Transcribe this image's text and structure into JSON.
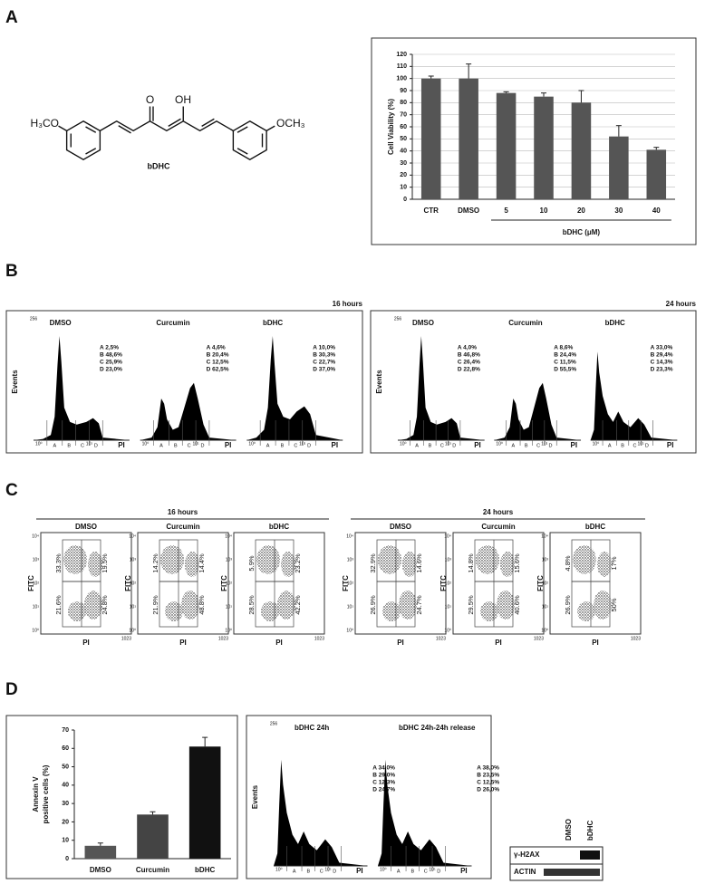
{
  "panel_labels": [
    "A",
    "B",
    "C",
    "D"
  ],
  "molecule": {
    "name": "bDHC",
    "left_group": "H₃CO",
    "right_group": "OCH₃",
    "keto": "O",
    "enol": "OH"
  },
  "chart_data": [
    {
      "type": "bar",
      "ylabel": [
        "Cell Viability (%)"
      ],
      "categories": [
        "CTR",
        "DMSO",
        "5",
        "10",
        "20",
        "30",
        "40"
      ],
      "values": [
        100,
        100,
        88,
        85,
        80,
        52,
        41
      ],
      "errors": [
        2,
        12,
        1,
        3,
        10,
        9,
        2
      ],
      "colors": [
        "#555555",
        "#555555",
        "#555555",
        "#555555",
        "#555555",
        "#555555",
        "#555555"
      ],
      "group_label": "bDHC (μM)",
      "ylim": [
        0,
        120
      ],
      "yticks": [
        0,
        10,
        20,
        30,
        40,
        50,
        60,
        70,
        80,
        90,
        100,
        110,
        120
      ],
      "grid": true
    },
    {
      "type": "bar",
      "ylabel": [
        "Annexin V",
        "positive cells (%)"
      ],
      "categories": [
        "DMSO",
        "Curcumin",
        "bDHC"
      ],
      "values": [
        7,
        24,
        61
      ],
      "errors": [
        1.5,
        1.5,
        5
      ],
      "colors": [
        "#555555",
        "#444444",
        "#111111"
      ],
      "ylim": [
        0,
        70
      ],
      "yticks": [
        0,
        10,
        20,
        30,
        40,
        50,
        60,
        70
      ],
      "grid": false
    }
  ],
  "cell_cycle": {
    "y_label": "Events",
    "y_max_label": "256",
    "x_label": "PI",
    "x_ticks": [
      "10⁰",
      "10¹"
    ],
    "gates": [
      "A",
      "B",
      "C",
      "D"
    ],
    "panels": [
      {
        "time": "16 hours",
        "samples": [
          {
            "name": "DMSO",
            "stats": [
              "A 2,5%",
              "B 48,6%",
              "C 25,9%",
              "D 23,0%"
            ]
          },
          {
            "name": "Curcumin",
            "stats": [
              "A 4,6%",
              "B 20,4%",
              "C 12,5%",
              "D 62,5%"
            ]
          },
          {
            "name": "bDHC",
            "stats": [
              "A 10,0%",
              "B 30,3%",
              "C 22,7%",
              "D 37,0%"
            ]
          }
        ]
      },
      {
        "time": "24 hours",
        "samples": [
          {
            "name": "DMSO",
            "stats": [
              "A 4,0%",
              "B 46,8%",
              "C 26,4%",
              "D 22,8%"
            ]
          },
          {
            "name": "Curcumin",
            "stats": [
              "A 8,6%",
              "B 24,4%",
              "C 11,5%",
              "D 55,5%"
            ]
          },
          {
            "name": "bDHC",
            "stats": [
              "A 33,0%",
              "B 29,4%",
              "C 14,3%",
              "D 23,3%"
            ]
          }
        ]
      }
    ]
  },
  "apoptosis": {
    "y_label": "FITC",
    "x_label": "PI",
    "x_end_label": "1023",
    "y_ticks": [
      "10⁰",
      "10¹",
      "10²",
      "10³",
      "10⁴"
    ],
    "groups": [
      {
        "time": "16 hours",
        "samples": [
          {
            "name": "DMSO",
            "quadrants": [
              "33.3%",
              "19.5%",
              "21.6%",
              "24.8%"
            ]
          },
          {
            "name": "Curcumin",
            "quadrants": [
              "14.2%",
              "14.4%",
              "21.9%",
              "48.8%"
            ]
          },
          {
            "name": "bDHC",
            "quadrants": [
              "5.9%",
              "23.2%",
              "28.5%",
              "42.2%"
            ]
          }
        ]
      },
      {
        "time": "24 hours",
        "samples": [
          {
            "name": "DMSO",
            "quadrants": [
              "32.9%",
              "14.6%",
              "26.9%",
              "24.7%"
            ]
          },
          {
            "name": "Curcumin",
            "quadrants": [
              "14.8%",
              "15.6%",
              "29.5%",
              "40.6%"
            ]
          },
          {
            "name": "bDHC",
            "quadrants": [
              "4.8%",
              "17%",
              "26.9%",
              "50%"
            ]
          }
        ]
      }
    ]
  },
  "release_histogram": {
    "y_label": "Events",
    "y_max_label": "256",
    "x_label": "PI",
    "x_ticks": [
      "10⁰",
      "10¹"
    ],
    "gates": [
      "A",
      "B",
      "C",
      "D"
    ],
    "panels": [
      {
        "samples": [
          {
            "name": "bDHC 24h",
            "stats": [
              "A 34,0%",
              "B 29,0%",
              "C 12,3%",
              "D 24,7%"
            ]
          },
          {
            "name": "bDHC 24h-24h release",
            "stats": [
              "A 38,0%",
              "B 23,5%",
              "C 12,5%",
              "D 26,0%"
            ]
          }
        ]
      }
    ]
  },
  "western_blot": {
    "lanes": [
      "DMSO",
      "bDHC"
    ],
    "proteins": [
      "γ-H2AX",
      "ACTIN"
    ]
  }
}
